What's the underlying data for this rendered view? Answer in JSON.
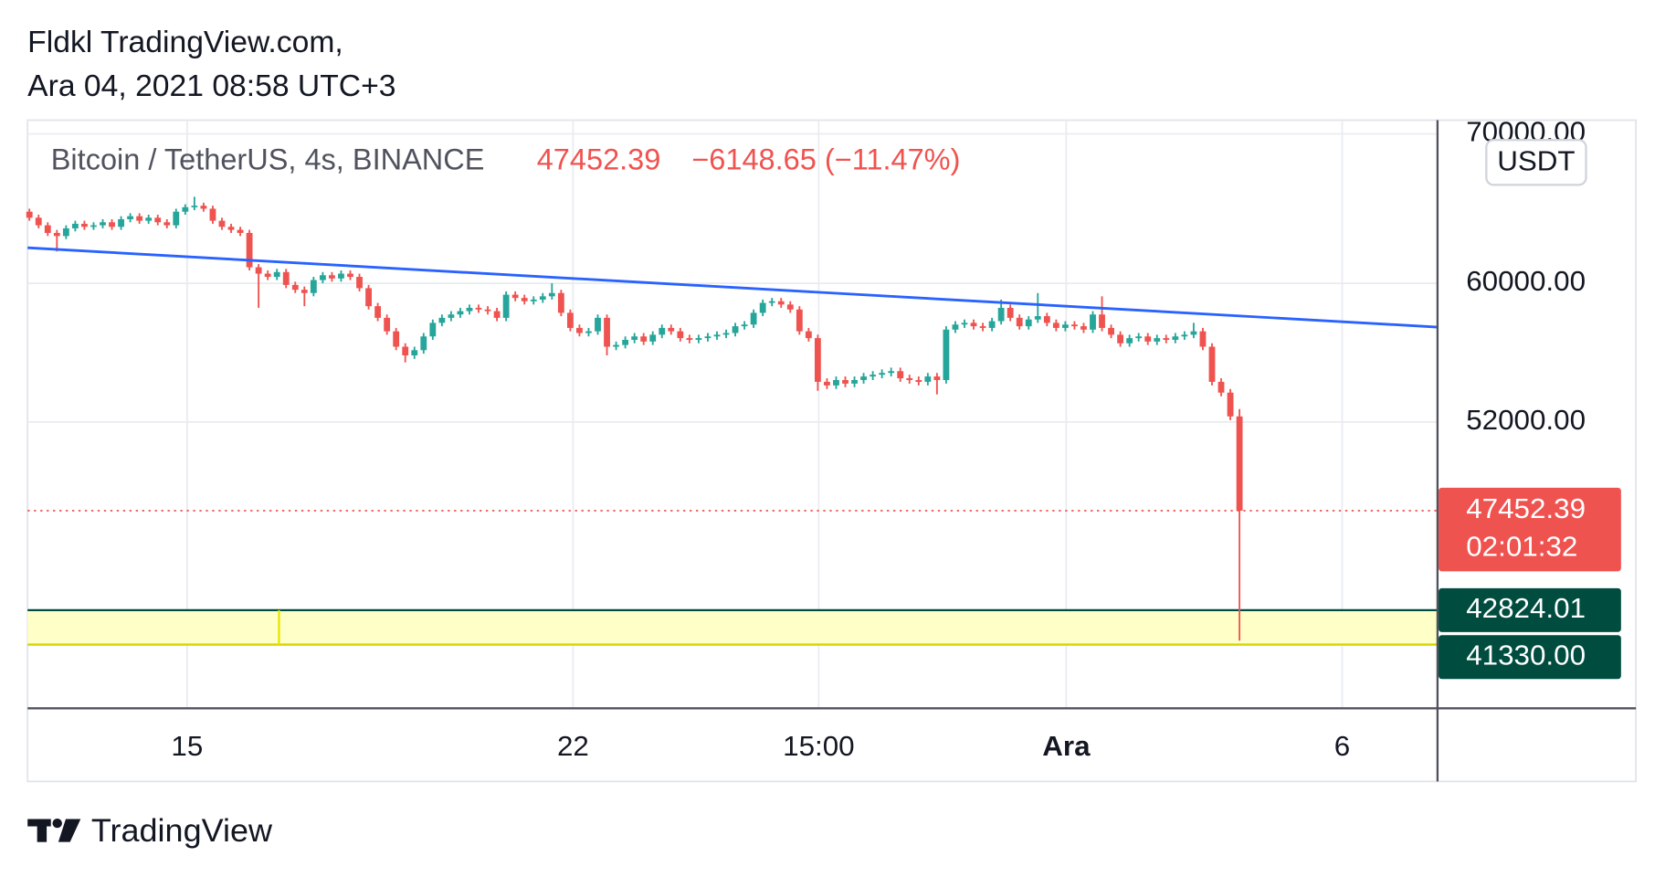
{
  "header": {
    "title": "Fldkl TradingView.com,",
    "timestamp": "Ara 04, 2021 08:58 UTC+3"
  },
  "footer": {
    "brand": "TradingView"
  },
  "chart_data": {
    "type": "candlestick",
    "symbol": "Bitcoin / TetherUS, 4s, BINANCE",
    "last_value_label": "47452.39",
    "change_label": "−6148.65 (−11.47%)",
    "currency": "USDT",
    "open": [
      64600,
      64200,
      63700,
      63200,
      63000,
      63500,
      63800,
      63600,
      63700,
      63900,
      63600,
      64100,
      64300,
      64000,
      64200,
      63900,
      63700,
      64600,
      64900,
      65000,
      64800,
      64000,
      63600,
      63400,
      63200,
      61000,
      60600,
      60400,
      60700,
      59900,
      59600,
      59400,
      60200,
      60500,
      60300,
      60600,
      60400,
      59700,
      58600,
      57900,
      57100,
      56200,
      55700,
      56000,
      56800,
      57600,
      57900,
      58100,
      58300,
      58500,
      58400,
      58300,
      57900,
      59300,
      59100,
      58900,
      59000,
      59200,
      59400,
      58200,
      57300,
      57000,
      57100,
      57900,
      56200,
      56300,
      56600,
      56800,
      56500,
      56900,
      57300,
      57100,
      56700,
      56600,
      56700,
      56800,
      56900,
      57000,
      57400,
      57500,
      58200,
      58800,
      58900,
      58700,
      58400,
      57100,
      56700,
      54200,
      54000,
      54300,
      54100,
      54300,
      54500,
      54600,
      54700,
      54800,
      54400,
      54300,
      54200,
      54500,
      54300,
      57200,
      57500,
      57600,
      57400,
      57300,
      57700,
      58500,
      57900,
      57400,
      57800,
      58000,
      57600,
      57300,
      57500,
      57400,
      57200,
      58100,
      57300,
      56900,
      56400,
      56700,
      56800,
      56500,
      56700,
      56600,
      56800,
      56900,
      57100,
      56200,
      54200,
      53600,
      52300
    ],
    "high": [
      64800,
      64400,
      63900,
      63400,
      63700,
      64000,
      64000,
      63900,
      64100,
      64100,
      64300,
      64500,
      64500,
      64400,
      64400,
      64100,
      64800,
      65100,
      65600,
      65200,
      65000,
      64200,
      63800,
      63600,
      63400,
      61200,
      60800,
      60900,
      60900,
      60100,
      59800,
      60400,
      60700,
      60700,
      60800,
      60800,
      60600,
      59900,
      58800,
      58100,
      57300,
      56400,
      56200,
      57000,
      57800,
      58100,
      58300,
      58500,
      58700,
      58700,
      58600,
      58500,
      59500,
      59500,
      59300,
      59200,
      59400,
      60000,
      59600,
      58400,
      57500,
      57300,
      58100,
      58100,
      56500,
      56800,
      57000,
      57000,
      57100,
      57500,
      57500,
      57300,
      56900,
      56900,
      57000,
      57100,
      57200,
      57600,
      57700,
      58400,
      59000,
      59100,
      59100,
      58900,
      58600,
      57300,
      56900,
      54400,
      54500,
      54500,
      54500,
      54700,
      54800,
      54900,
      55000,
      55000,
      54600,
      54500,
      54700,
      54700,
      57400,
      57700,
      57800,
      57800,
      57600,
      57900,
      59000,
      58700,
      58100,
      58000,
      59400,
      58200,
      57800,
      57700,
      57700,
      57600,
      58300,
      59200,
      57500,
      57100,
      56900,
      57000,
      57000,
      56900,
      56900,
      57000,
      57100,
      57600,
      57300,
      56400,
      54400,
      53800,
      52700
    ],
    "low": [
      64000,
      63500,
      63000,
      62000,
      62800,
      63300,
      63400,
      63400,
      63500,
      63400,
      63400,
      63900,
      63800,
      63800,
      63700,
      63500,
      63500,
      64400,
      64700,
      64600,
      63800,
      63400,
      63200,
      63000,
      60800,
      58500,
      60200,
      60200,
      59700,
      59400,
      58600,
      59200,
      60000,
      60100,
      60100,
      60200,
      59500,
      58400,
      57700,
      56900,
      56000,
      55300,
      55500,
      55800,
      56600,
      57400,
      57700,
      57900,
      58100,
      58200,
      58100,
      57700,
      57700,
      58900,
      58700,
      58700,
      58800,
      59000,
      58000,
      57100,
      56800,
      56800,
      56900,
      55700,
      56000,
      56100,
      56400,
      56300,
      56300,
      56700,
      56900,
      56500,
      56400,
      56400,
      56500,
      56600,
      56700,
      56800,
      57200,
      57300,
      58000,
      58600,
      58500,
      58200,
      56900,
      56500,
      53700,
      53800,
      53800,
      53900,
      53900,
      54100,
      54300,
      54400,
      54500,
      54200,
      54100,
      54000,
      54000,
      53500,
      54100,
      57000,
      57300,
      57200,
      57100,
      57100,
      57500,
      57700,
      57200,
      57200,
      57600,
      57400,
      57100,
      57100,
      57200,
      57000,
      57000,
      57100,
      56700,
      56200,
      56200,
      56500,
      56300,
      56300,
      56400,
      56400,
      56600,
      56700,
      56000,
      54000,
      53400,
      52100,
      41500
    ],
    "close": [
      64200,
      63700,
      63200,
      63000,
      63500,
      63800,
      63600,
      63700,
      63900,
      63600,
      64100,
      64300,
      64000,
      64200,
      63900,
      63700,
      64600,
      64900,
      65000,
      64800,
      64000,
      63600,
      63400,
      63200,
      61000,
      60600,
      60400,
      60700,
      59900,
      59600,
      59400,
      60200,
      60500,
      60300,
      60600,
      60400,
      59700,
      58600,
      57900,
      57100,
      56200,
      55700,
      56000,
      56800,
      57600,
      57900,
      58100,
      58300,
      58500,
      58400,
      58300,
      57900,
      59300,
      59100,
      58900,
      59000,
      59200,
      59400,
      58200,
      57300,
      57000,
      57100,
      57900,
      56200,
      56300,
      56600,
      56800,
      56500,
      56900,
      57300,
      57100,
      56700,
      56600,
      56700,
      56800,
      56900,
      57000,
      57400,
      57500,
      58200,
      58800,
      58900,
      58700,
      58400,
      57100,
      56700,
      54200,
      54000,
      54300,
      54100,
      54300,
      54500,
      54600,
      54700,
      54800,
      54400,
      54300,
      54200,
      54500,
      54300,
      57200,
      57500,
      57600,
      57400,
      57300,
      57700,
      58500,
      57900,
      57400,
      57800,
      58000,
      57600,
      57300,
      57500,
      57400,
      57200,
      58100,
      57300,
      56900,
      56400,
      56700,
      56800,
      56500,
      56700,
      56600,
      56800,
      56900,
      57100,
      56200,
      54200,
      53600,
      52300,
      47452.39
    ],
    "up_color": "#26a69a",
    "down_color": "#ef5350",
    "xlim": [
      -0.2,
      153.6
    ],
    "xticks": [
      {
        "value": 17.2,
        "label": "15"
      },
      {
        "value": 59.3,
        "label": "22"
      },
      {
        "value": 86.1,
        "label": "15:00"
      },
      {
        "value": 113.1,
        "label": "Ara",
        "bold": true
      },
      {
        "value": 143.2,
        "label": "6"
      }
    ],
    "ylim": [
      38700,
      71000
    ],
    "log_scale": true,
    "yticks": [
      {
        "value": 70000,
        "label": "70000.00"
      },
      {
        "value": 60000,
        "label": "60000.00"
      },
      {
        "value": 52000,
        "label": "52000.00"
      }
    ],
    "grid": true,
    "last_price": {
      "value": 47452.39,
      "label": "47452.39",
      "countdown": "02:01:32",
      "color": "#ef5350"
    },
    "trendline": {
      "x": [
        -0.2,
        153.6
      ],
      "y": [
        62240,
        57350
      ],
      "color": "#2962ff"
    },
    "zone": {
      "top": {
        "value": 42824.01,
        "label": "42824.01"
      },
      "bottom": {
        "value": 41330,
        "label": "41330.00"
      },
      "fill": "#ffffc8",
      "top_color": "#004d40",
      "bottom_color": "#d4d400",
      "label_color": "#004d40"
    }
  }
}
